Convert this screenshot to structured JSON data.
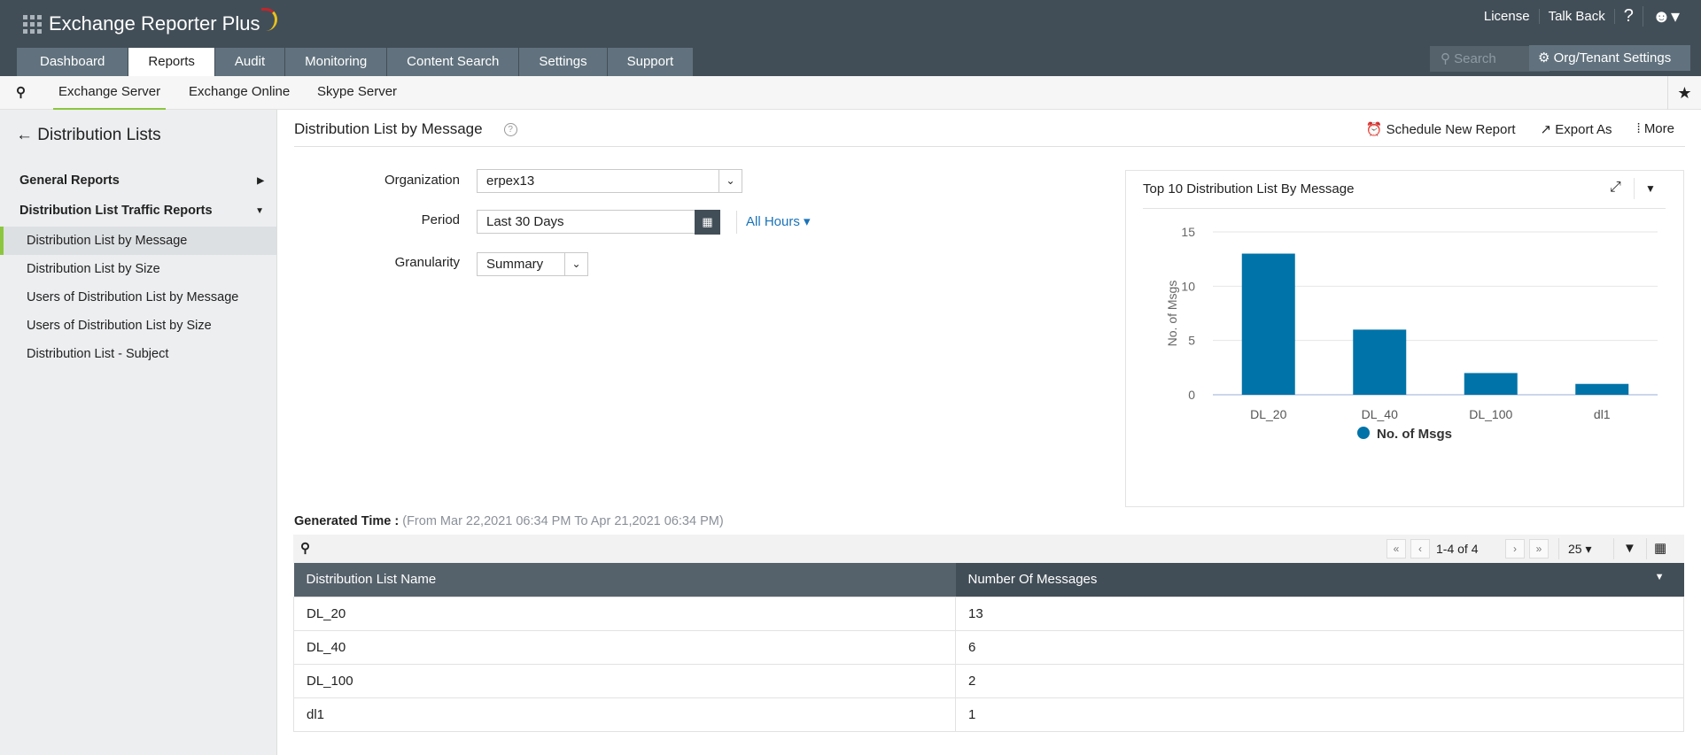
{
  "app": {
    "title": "Exchange Reporter Plus",
    "top_links": [
      "License",
      "Talk Back",
      "?"
    ],
    "search_placeholder": "Search",
    "org_settings": "Org/Tenant Settings"
  },
  "tabs": [
    "Dashboard",
    "Reports",
    "Audit",
    "Monitoring",
    "Content Search",
    "Settings",
    "Support"
  ],
  "active_tab": "Reports",
  "subnav": [
    "Exchange Server",
    "Exchange Online",
    "Skype Server"
  ],
  "sidebar": {
    "title": "Distribution Lists",
    "groups": [
      "General Reports",
      "Distribution List Traffic Reports"
    ],
    "items": [
      "Distribution List by Message",
      "Distribution List by Size",
      "Users of Distribution List by Message",
      "Users of Distribution List by Size",
      "Distribution List - Subject"
    ]
  },
  "page": {
    "title": "Distribution List by Message",
    "actions": [
      "Schedule New Report",
      "Export As",
      "More"
    ]
  },
  "form": {
    "org_label": "Organization",
    "org_value": "erpex13",
    "period_label": "Period",
    "period_value": "Last 30 Days",
    "hours": "All Hours",
    "gran_label": "Granularity",
    "gran_value": "Summary"
  },
  "generated": {
    "label": "Generated Time :",
    "value": "(From Mar 22,2021 06:34 PM To Apr 21,2021 06:34 PM)"
  },
  "pagination": {
    "range": "1-4 of 4",
    "per_page": "25"
  },
  "table": {
    "headers": [
      "Distribution List Name",
      "Number Of Messages"
    ],
    "rows": [
      [
        "DL_20",
        "13"
      ],
      [
        "DL_40",
        "6"
      ],
      [
        "DL_100",
        "2"
      ],
      [
        "dl1",
        "1"
      ]
    ]
  },
  "colors": {
    "header": "#424e57",
    "accent": "#8cc63f",
    "bar": "#0073a8"
  },
  "chart_data": {
    "type": "bar",
    "title": "Top 10 Distribution List By Message",
    "categories": [
      "DL_20",
      "DL_40",
      "DL_100",
      "dl1"
    ],
    "series": [
      {
        "name": "No. of Msgs",
        "values": [
          13,
          6,
          2,
          1
        ]
      }
    ],
    "ylabel": "No. of Msgs",
    "xlabel": "",
    "ylim": [
      0,
      15
    ],
    "yticks": [
      "0",
      "5",
      "10",
      "15"
    ],
    "grid": true,
    "legend": "bottom"
  }
}
